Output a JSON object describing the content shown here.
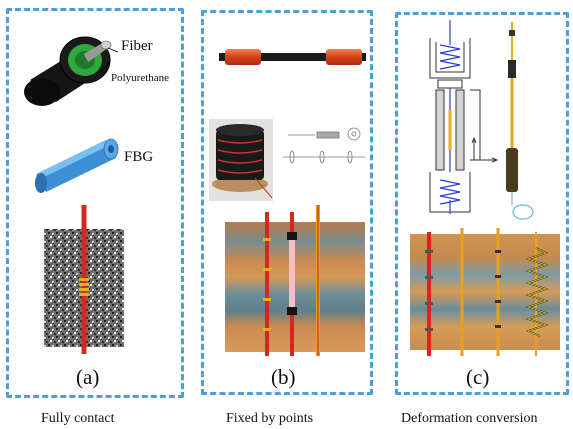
{
  "panel_a": {
    "fiber_label": "Fiber",
    "polyurethane_label": "Polyurethane",
    "fbg_label": "FBG",
    "letter": "(a)",
    "caption": "Fully contact"
  },
  "panel_b": {
    "letter": "(b)",
    "caption": "Fixed by points"
  },
  "panel_c": {
    "letter": "(c)",
    "caption": "Deformation conversion"
  },
  "colors": {
    "dashed_border": "#4aa0d8",
    "cable_red": "#d8261f",
    "fbg_blue": "#3d8fd6",
    "sheath_green": "#2fa83e",
    "gold": "#e8b020"
  }
}
